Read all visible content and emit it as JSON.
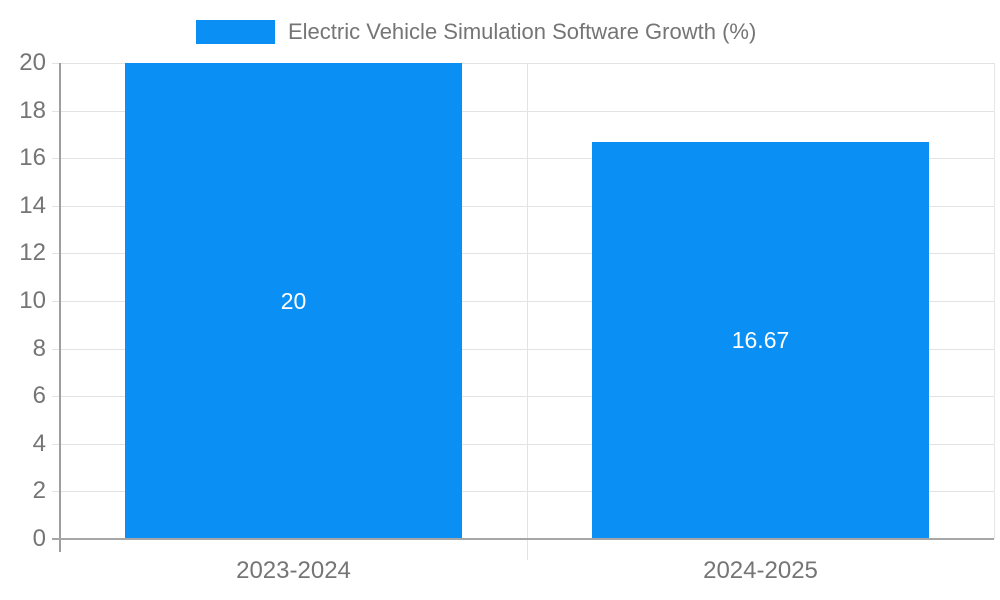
{
  "chart_data": {
    "type": "bar",
    "title": "Electric Vehicle Simulation Software Growth (%)",
    "categories": [
      "2023-2024",
      "2024-2025"
    ],
    "values": [
      20,
      16.67
    ],
    "value_labels": [
      "20",
      "16.67"
    ],
    "xlabel": "",
    "ylabel": "",
    "ylim": [
      0,
      20
    ],
    "yticks": [
      0,
      2,
      4,
      6,
      8,
      10,
      12,
      14,
      16,
      18,
      20
    ],
    "grid": true,
    "legend_position": "top",
    "colors": {
      "bar": "#0a8ff4",
      "value_label": "#ffffff",
      "tick_text": "#757575",
      "grid": "#e3e3e3",
      "axis": "#9e9e9e",
      "baseline": "#a6a6a6"
    }
  }
}
